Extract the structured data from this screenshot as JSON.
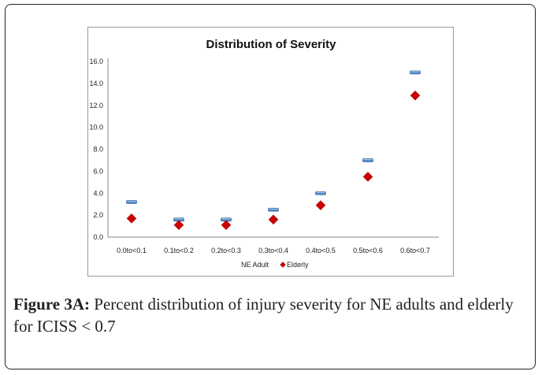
{
  "chart_data": {
    "type": "scatter",
    "title": "Distribution of Severity",
    "xlabel": "",
    "ylabel": "",
    "categories": [
      "0.0to<0.1",
      "0.1to<0.2",
      "0.2to<0.3",
      "0.3to<0.4",
      "0.4to<0.5",
      "0.5to<0.6",
      "0.6to<0.7"
    ],
    "ylim": [
      0,
      16
    ],
    "yticks": [
      "0.0",
      "2.0",
      "4.0",
      "6.0",
      "8.0",
      "10.0",
      "12.0",
      "14.0",
      "16.0"
    ],
    "ytick_values": [
      0,
      2,
      4,
      6,
      8,
      10,
      12,
      14,
      16
    ],
    "grid": false,
    "legend_position": "bottom",
    "series": [
      {
        "name": "NE Adult",
        "marker": "dash",
        "color": "#4f86c6",
        "values": [
          3.2,
          1.6,
          1.6,
          2.5,
          4.0,
          7.0,
          15.0
        ]
      },
      {
        "name": "Elderly",
        "marker": "diamond",
        "color": "#cc0000",
        "values": [
          1.7,
          1.1,
          1.1,
          1.6,
          2.9,
          5.5,
          12.9
        ]
      }
    ]
  },
  "caption": {
    "label": "Figure 3A:",
    "text": " Percent distribution of injury severity for NE adults and elderly for ICISS < 0.7"
  }
}
